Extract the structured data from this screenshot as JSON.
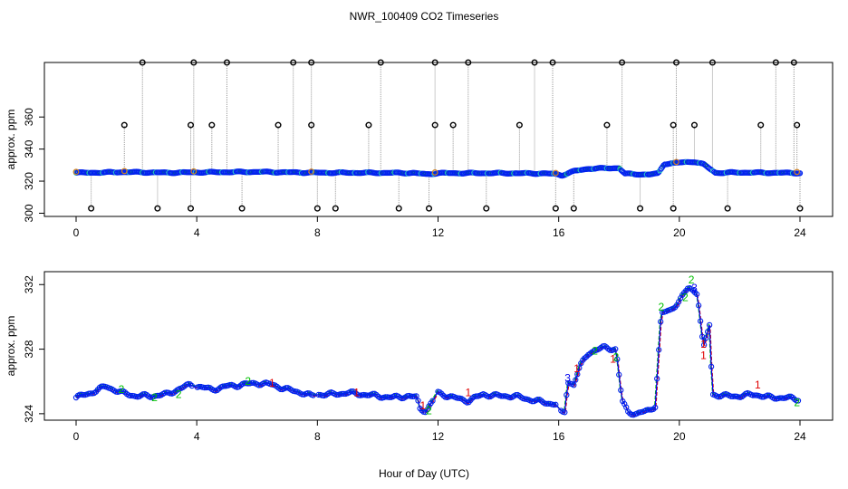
{
  "chart_data": [
    {
      "panel": "top",
      "type": "scatter",
      "title": "NWR_100409  CO2 Timeseries",
      "xlabel": "",
      "ylabel": "approx. ppm",
      "xlim": [
        0,
        24
      ],
      "ylim": [
        298,
        394
      ],
      "xticks": [
        "0",
        "4",
        "8",
        "12",
        "16",
        "20",
        "24"
      ],
      "yticks": [
        "300",
        "320",
        "340",
        "360"
      ],
      "baseline": [
        [
          0,
          325.2
        ],
        [
          1,
          325.4
        ],
        [
          1.5,
          325.7
        ],
        [
          3,
          325.3
        ],
        [
          4,
          325.5
        ],
        [
          6,
          325.8
        ],
        [
          7,
          325.5
        ],
        [
          8,
          325.3
        ],
        [
          10,
          325.2
        ],
        [
          11.2,
          325.1
        ],
        [
          11.6,
          324.3
        ],
        [
          12,
          325.0
        ],
        [
          14,
          325.0
        ],
        [
          15.5,
          324.8
        ],
        [
          15.9,
          324.5
        ],
        [
          16.1,
          323.6
        ],
        [
          16.5,
          326.2
        ],
        [
          17,
          327.8
        ],
        [
          18,
          328.2
        ],
        [
          18.2,
          324.6
        ],
        [
          19,
          324.1
        ],
        [
          19.3,
          324.8
        ],
        [
          19.5,
          330.8
        ],
        [
          20,
          331.5
        ],
        [
          20.5,
          332.2
        ],
        [
          20.8,
          330.5
        ],
        [
          21.2,
          325.2
        ],
        [
          22,
          325.4
        ],
        [
          24,
          325.1
        ]
      ],
      "spikes_high": [
        2.2,
        3.9,
        5.0,
        7.2,
        7.8,
        10.1,
        11.9,
        13.0,
        15.2,
        15.8,
        18.1,
        19.9,
        21.1,
        23.2,
        23.8
      ],
      "spikes_mid": [
        1.6,
        3.8,
        4.5,
        6.7,
        7.8,
        9.7,
        11.9,
        12.5,
        14.7,
        17.6,
        19.8,
        20.5,
        22.7,
        23.9
      ],
      "spikes_low": [
        0.5,
        2.7,
        3.8,
        5.5,
        8.0,
        8.6,
        10.7,
        11.7,
        13.6,
        15.9,
        16.5,
        18.7,
        19.8,
        21.6,
        24.0
      ],
      "spike_levels": {
        "high": 394,
        "mid": 355,
        "low": 303
      }
    },
    {
      "panel": "bottom",
      "type": "line",
      "title": "",
      "xlabel": "Hour of Day (UTC)",
      "ylabel": "approx. ppm",
      "xlim": [
        0,
        24
      ],
      "ylim": [
        323.6,
        332.8
      ],
      "xticks": [
        "0",
        "4",
        "8",
        "12",
        "16",
        "20",
        "24"
      ],
      "yticks": [
        "324",
        "328",
        "332"
      ],
      "series": [
        {
          "name": "1",
          "color": "#e00000"
        },
        {
          "name": "2",
          "color": "#00c000"
        },
        {
          "name": "3",
          "color": "#0000ee"
        }
      ],
      "data": [
        [
          0,
          325.0
        ],
        [
          0.5,
          325.3
        ],
        [
          1.0,
          325.7
        ],
        [
          1.5,
          325.3
        ],
        [
          2.0,
          325.1
        ],
        [
          2.5,
          325.1
        ],
        [
          3.0,
          325.2
        ],
        [
          3.5,
          325.6
        ],
        [
          3.8,
          325.8
        ],
        [
          4.0,
          325.7
        ],
        [
          4.5,
          325.5
        ],
        [
          5.0,
          325.7
        ],
        [
          5.5,
          325.8
        ],
        [
          6.0,
          325.9
        ],
        [
          6.5,
          325.8
        ],
        [
          7.0,
          325.5
        ],
        [
          7.5,
          325.3
        ],
        [
          7.8,
          325.1
        ],
        [
          8.0,
          325.2
        ],
        [
          8.5,
          325.2
        ],
        [
          9.0,
          325.3
        ],
        [
          9.5,
          325.2
        ],
        [
          10.0,
          325.1
        ],
        [
          10.5,
          325.0
        ],
        [
          11.0,
          325.1
        ],
        [
          11.3,
          325.0
        ],
        [
          11.4,
          324.3
        ],
        [
          11.6,
          324.2
        ],
        [
          11.8,
          324.7
        ],
        [
          12.0,
          325.3
        ],
        [
          12.5,
          325.0
        ],
        [
          13.0,
          324.8
        ],
        [
          13.5,
          325.2
        ],
        [
          14.0,
          325.1
        ],
        [
          14.5,
          325.1
        ],
        [
          15.0,
          324.9
        ],
        [
          15.5,
          324.7
        ],
        [
          15.9,
          324.6
        ],
        [
          16.1,
          324.0
        ],
        [
          16.2,
          324.1
        ],
        [
          16.3,
          326.0
        ],
        [
          16.5,
          325.8
        ],
        [
          16.7,
          326.9
        ],
        [
          17.0,
          327.8
        ],
        [
          17.5,
          328.1
        ],
        [
          17.9,
          328.0
        ],
        [
          18.1,
          324.8
        ],
        [
          18.3,
          324.1
        ],
        [
          18.6,
          324.0
        ],
        [
          19.0,
          324.2
        ],
        [
          19.2,
          324.5
        ],
        [
          19.4,
          330.2
        ],
        [
          19.7,
          330.4
        ],
        [
          20.0,
          331.0
        ],
        [
          20.3,
          331.8
        ],
        [
          20.6,
          331.5
        ],
        [
          20.8,
          328.0
        ],
        [
          21.0,
          329.5
        ],
        [
          21.1,
          325.2
        ],
        [
          21.5,
          325.1
        ],
        [
          22.0,
          325.1
        ],
        [
          22.5,
          325.2
        ],
        [
          23.0,
          325.0
        ],
        [
          23.5,
          325.0
        ],
        [
          23.9,
          324.9
        ]
      ],
      "labels": [
        {
          "x": 1.5,
          "y": 325.5,
          "text": "2"
        },
        {
          "x": 2.6,
          "y": 325.0,
          "text": "2"
        },
        {
          "x": 3.4,
          "y": 325.2,
          "text": "2"
        },
        {
          "x": 5.7,
          "y": 326.0,
          "text": "2"
        },
        {
          "x": 6.5,
          "y": 325.9,
          "text": "1"
        },
        {
          "x": 9.3,
          "y": 325.3,
          "text": "1"
        },
        {
          "x": 11.5,
          "y": 324.5,
          "text": "1"
        },
        {
          "x": 11.7,
          "y": 324.2,
          "text": "2"
        },
        {
          "x": 13.0,
          "y": 325.3,
          "text": "1"
        },
        {
          "x": 16.3,
          "y": 326.2,
          "text": "3"
        },
        {
          "x": 16.6,
          "y": 326.8,
          "text": "1"
        },
        {
          "x": 17.2,
          "y": 327.9,
          "text": "2"
        },
        {
          "x": 17.8,
          "y": 327.4,
          "text": "1"
        },
        {
          "x": 17.9,
          "y": 327.5,
          "text": "2"
        },
        {
          "x": 19.4,
          "y": 330.6,
          "text": "2"
        },
        {
          "x": 20.2,
          "y": 331.2,
          "text": "2"
        },
        {
          "x": 20.4,
          "y": 332.3,
          "text": "2"
        },
        {
          "x": 20.5,
          "y": 331.8,
          "text": "3"
        },
        {
          "x": 20.8,
          "y": 328.3,
          "text": "1"
        },
        {
          "x": 20.8,
          "y": 327.6,
          "text": "1"
        },
        {
          "x": 22.6,
          "y": 325.8,
          "text": "1"
        },
        {
          "x": 23.9,
          "y": 324.7,
          "text": "2"
        }
      ]
    }
  ]
}
